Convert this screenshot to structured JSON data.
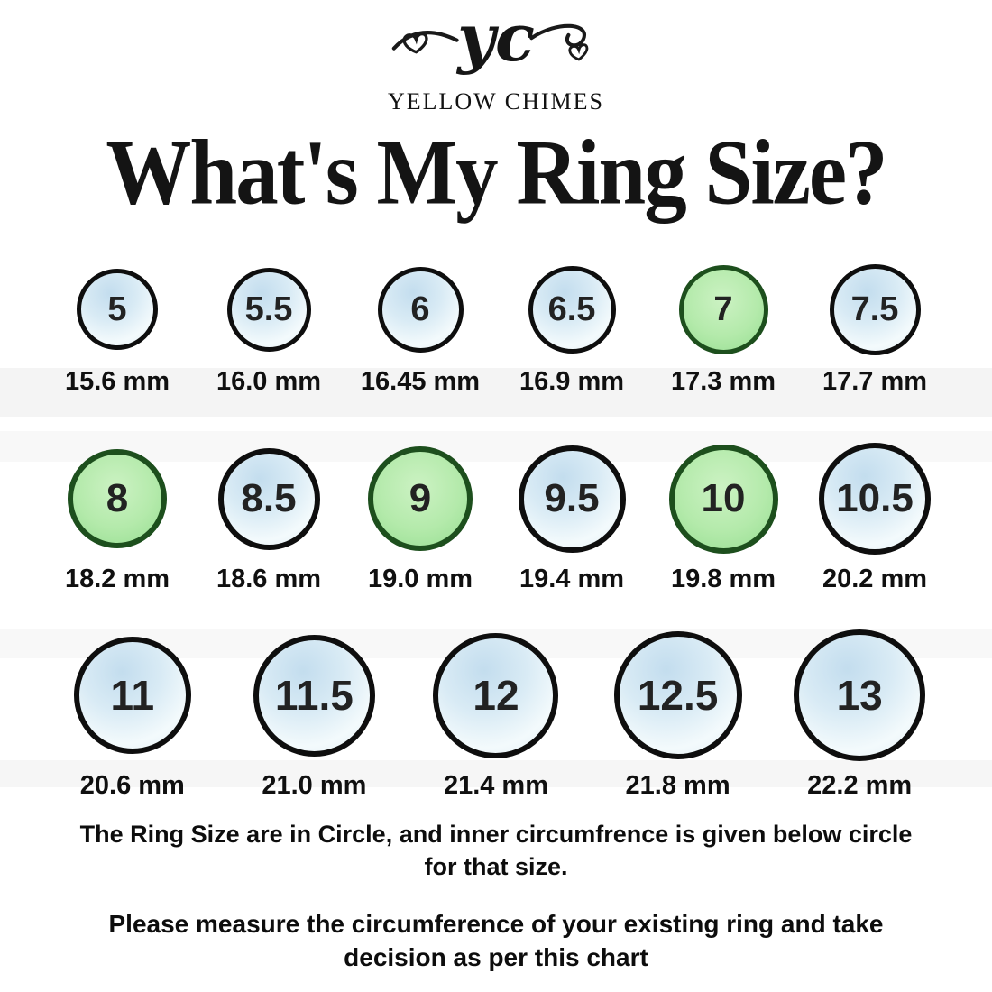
{
  "brand": {
    "logo_text": "yc",
    "name": "YELLOW CHIMES"
  },
  "title": "What's My Ring Size?",
  "chart_data": {
    "type": "table",
    "title": "What's My Ring Size?",
    "description": "Ring size chart: US ring size shown inside each circle, inner diameter in mm below each circle",
    "rows": [
      {
        "items": [
          {
            "size": "5",
            "circumference": "15.6 mm",
            "color": "blue",
            "diameter": 90
          },
          {
            "size": "5.5",
            "circumference": "16.0 mm",
            "color": "blue",
            "diameter": 93
          },
          {
            "size": "6",
            "circumference": "16.45 mm",
            "color": "blue",
            "diameter": 95
          },
          {
            "size": "6.5",
            "circumference": "16.9 mm",
            "color": "blue",
            "diameter": 97
          },
          {
            "size": "7",
            "circumference": "17.3 mm",
            "color": "green",
            "diameter": 99
          },
          {
            "size": "7.5",
            "circumference": "17.7 mm",
            "color": "blue",
            "diameter": 101
          }
        ]
      },
      {
        "items": [
          {
            "size": "8",
            "circumference": "18.2 mm",
            "color": "green",
            "diameter": 110
          },
          {
            "size": "8.5",
            "circumference": "18.6 mm",
            "color": "blue",
            "diameter": 113
          },
          {
            "size": "9",
            "circumference": "19.0 mm",
            "color": "green",
            "diameter": 116
          },
          {
            "size": "9.5",
            "circumference": "19.4 mm",
            "color": "blue",
            "diameter": 119
          },
          {
            "size": "10",
            "circumference": "19.8 mm",
            "color": "green",
            "diameter": 121
          },
          {
            "size": "10.5",
            "circumference": "20.2 mm",
            "color": "blue",
            "diameter": 124
          }
        ]
      },
      {
        "items": [
          {
            "size": "11",
            "circumference": "20.6 mm",
            "color": "blue",
            "diameter": 130
          },
          {
            "size": "11.5",
            "circumference": "21.0 mm",
            "color": "blue",
            "diameter": 135
          },
          {
            "size": "12",
            "circumference": "21.4 mm",
            "color": "blue",
            "diameter": 139
          },
          {
            "size": "12.5",
            "circumference": "21.8 mm",
            "color": "blue",
            "diameter": 142
          },
          {
            "size": "13",
            "circumference": "22.2 mm",
            "color": "blue",
            "diameter": 146
          }
        ]
      }
    ],
    "colors": {
      "blue_fill": "#d9ebf5",
      "green_fill": "#a8e6a0",
      "blue_border": "#0e0e0e",
      "green_border": "#1d4f1d"
    }
  },
  "footer": {
    "note1": "The Ring Size are in Circle, and inner circumfrence is  given below circle for that size.",
    "note2": "Please measure the circumference of your existing ring and take decision as per this chart"
  }
}
